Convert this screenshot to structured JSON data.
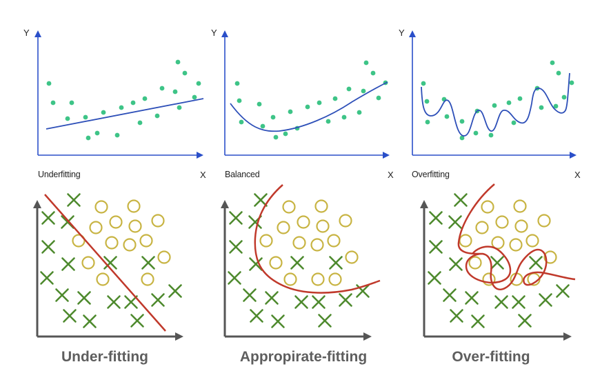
{
  "colors": {
    "top_axis": "#2a4fc9",
    "top_point": "#3ec487",
    "top_curve": "#2d4fb8",
    "bottom_axis": "#555555",
    "cross": "#4e8a2e",
    "circle": "#c8b443",
    "boundary": "#c0392b",
    "caption": "#5e5e5e"
  },
  "top_panels": [
    {
      "y_axis_label": "Y",
      "x_axis_label": "X",
      "label": "Underfitting"
    },
    {
      "y_axis_label": "Y",
      "x_axis_label": "X",
      "label": "Balanced"
    },
    {
      "y_axis_label": "Y",
      "x_axis_label": "X",
      "label": "Overfitting"
    }
  ],
  "bottom_panels": [
    {
      "caption": "Under-fitting"
    },
    {
      "caption": "Appropirate-fitting"
    },
    {
      "caption": "Over-fitting"
    }
  ]
}
